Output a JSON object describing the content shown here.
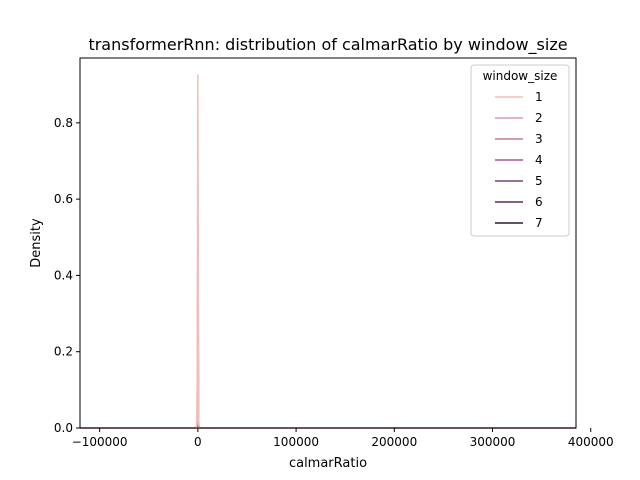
{
  "chart_data": {
    "type": "line",
    "title": "transformerRnn: distribution of calmarRatio by window_size",
    "xlabel": "calmarRatio",
    "ylabel": "Density",
    "xlim": [
      -120000,
      385000
    ],
    "ylim": [
      0,
      0.97
    ],
    "xticks": [
      -100000,
      0,
      100000,
      200000,
      300000,
      400000
    ],
    "xtick_labels": [
      "−100000",
      "0",
      "100000",
      "200000",
      "300000",
      "400000"
    ],
    "yticks": [
      0.0,
      0.2,
      0.4,
      0.6,
      0.8
    ],
    "ytick_labels": [
      "0.0",
      "0.2",
      "0.4",
      "0.6",
      "0.8"
    ],
    "grid": false,
    "legend": {
      "title": "window_size",
      "placement": "top-right",
      "entries": [
        {
          "label": "1",
          "color": "#eebfbc"
        },
        {
          "label": "2",
          "color": "#d99ba8"
        },
        {
          "label": "3",
          "color": "#c27a96"
        },
        {
          "label": "4",
          "color": "#a55c86"
        },
        {
          "label": "5",
          "color": "#7d4270"
        },
        {
          "label": "6",
          "color": "#582c56"
        },
        {
          "label": "7",
          "color": "#2d1a35"
        }
      ]
    },
    "series": [
      {
        "name": "1",
        "color": "#eebfbc",
        "x": [
          -120000,
          -1500,
          -800,
          -300,
          0,
          300,
          800,
          1500,
          385000
        ],
        "y": [
          0,
          0,
          0.02,
          0.5,
          0.925,
          0.5,
          0.02,
          0,
          0
        ]
      },
      {
        "name": "2",
        "color": "#d99ba8",
        "x": [
          -120000,
          -1500,
          -800,
          -300,
          0,
          300,
          800,
          1500,
          385000
        ],
        "y": [
          0,
          0,
          0.01,
          0.35,
          0.65,
          0.35,
          0.01,
          0,
          0
        ]
      },
      {
        "name": "3",
        "color": "#c27a96",
        "x": [
          -120000,
          -1500,
          -800,
          -300,
          0,
          300,
          800,
          1500,
          385000
        ],
        "y": [
          0,
          0,
          0.01,
          0.3,
          0.55,
          0.3,
          0.01,
          0,
          0
        ]
      },
      {
        "name": "4",
        "color": "#a55c86",
        "x": [
          -120000,
          -2000,
          -1000,
          0,
          1000,
          2000,
          385000
        ],
        "y": [
          0,
          0,
          0.005,
          0.02,
          0.005,
          0,
          0
        ]
      },
      {
        "name": "5",
        "color": "#7d4270",
        "x": [
          -120000,
          -2000,
          -1000,
          0,
          1000,
          2000,
          385000
        ],
        "y": [
          0,
          0,
          0.005,
          0.015,
          0.005,
          0,
          0
        ]
      },
      {
        "name": "6",
        "color": "#582c56",
        "x": [
          -120000,
          -2000,
          -1000,
          0,
          1000,
          2000,
          385000
        ],
        "y": [
          0,
          0,
          0.004,
          0.01,
          0.004,
          0,
          0
        ]
      },
      {
        "name": "7",
        "color": "#2d1a35",
        "x": [
          -120000,
          -2000,
          -1000,
          0,
          1000,
          2000,
          385000
        ],
        "y": [
          0,
          0,
          0.003,
          0.008,
          0.003,
          0,
          0
        ]
      }
    ]
  }
}
